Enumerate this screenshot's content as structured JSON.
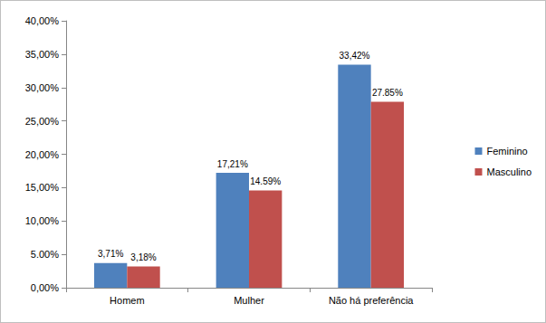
{
  "chart_data": {
    "type": "bar",
    "categories": [
      "Homem",
      "Mulher",
      "Não há preferência"
    ],
    "series": [
      {
        "name": "Feminino",
        "color": "#4f81bd",
        "values": [
          3.71,
          17.21,
          33.42
        ],
        "value_labels": [
          "3,71%",
          "17,21%",
          "33,42%"
        ]
      },
      {
        "name": "Masculino",
        "color": "#c0504d",
        "values": [
          3.18,
          14.59,
          27.85
        ],
        "value_labels": [
          "3,18%",
          "14.59%",
          "27.85%"
        ]
      }
    ],
    "ylim": [
      0,
      40
    ],
    "yticks": [
      {
        "value": 0,
        "label": "0,00%"
      },
      {
        "value": 5,
        "label": "5.00%"
      },
      {
        "value": 10,
        "label": "10,00%"
      },
      {
        "value": 15,
        "label": "15,00%"
      },
      {
        "value": 20,
        "label": "20,00%"
      },
      {
        "value": 25,
        "label": "25,00%"
      },
      {
        "value": 30,
        "label": "30,00%"
      },
      {
        "value": 35,
        "label": "35,00%"
      },
      {
        "value": 40,
        "label": "40,00%"
      }
    ],
    "grid": false,
    "legend": "right",
    "data_labels": true
  }
}
